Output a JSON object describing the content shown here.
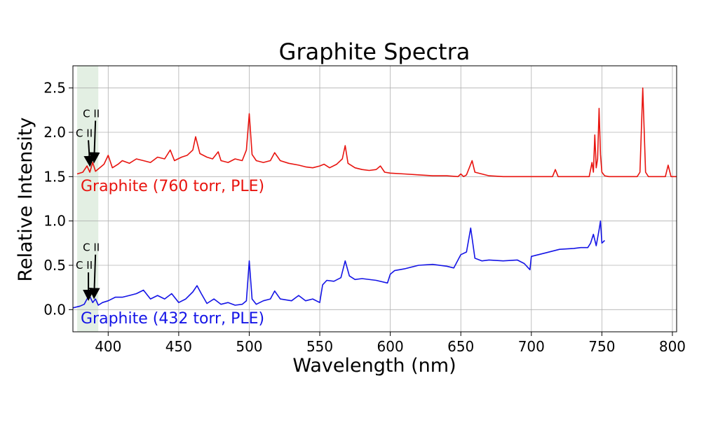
{
  "chart_data": {
    "type": "line",
    "title": "Graphite Spectra",
    "xlabel": "Wavelength (nm)",
    "ylabel": "Relative Intensity",
    "xlim": [
      375,
      803
    ],
    "ylim": [
      -0.25,
      2.75
    ],
    "xticks": [
      400,
      450,
      500,
      550,
      600,
      650,
      700,
      750,
      800
    ],
    "yticks": [
      0.0,
      0.5,
      1.0,
      1.5,
      2.0,
      2.5
    ],
    "ytick_labels": [
      "0.0",
      "0.5",
      "1.0",
      "1.5",
      "2.0",
      "2.5"
    ],
    "grid": true,
    "highlight_band": {
      "x": [
        378,
        393
      ],
      "color": "#d9ead9"
    },
    "series": [
      {
        "name": "Graphite (760 torr, PLE)",
        "color": "#e8140f",
        "x": [
          378,
          382,
          385,
          387,
          389,
          391,
          394,
          397,
          400,
          403,
          407,
          410,
          415,
          420,
          425,
          430,
          435,
          440,
          444,
          447,
          452,
          456,
          460,
          462,
          465,
          470,
          474,
          478,
          480,
          485,
          490,
          495,
          498,
          500,
          502,
          505,
          510,
          515,
          518,
          522,
          528,
          535,
          540,
          545,
          550,
          553,
          557,
          562,
          566,
          568,
          570,
          575,
          580,
          585,
          590,
          593,
          596,
          600,
          610,
          620,
          630,
          640,
          648,
          650,
          652,
          654,
          656,
          658,
          660,
          670,
          680,
          690,
          700,
          710,
          715,
          717,
          719,
          725,
          735,
          741,
          743,
          744,
          745,
          746,
          747,
          748,
          749,
          750,
          752,
          755,
          760,
          770,
          775,
          777,
          779,
          781,
          783,
          790,
          795,
          797,
          799,
          803
        ],
        "y": [
          1.53,
          1.55,
          1.62,
          1.55,
          1.66,
          1.56,
          1.6,
          1.64,
          1.74,
          1.6,
          1.64,
          1.68,
          1.65,
          1.7,
          1.68,
          1.66,
          1.72,
          1.7,
          1.8,
          1.68,
          1.72,
          1.74,
          1.8,
          1.95,
          1.76,
          1.72,
          1.7,
          1.78,
          1.68,
          1.66,
          1.7,
          1.68,
          1.8,
          2.21,
          1.75,
          1.68,
          1.66,
          1.68,
          1.77,
          1.68,
          1.65,
          1.63,
          1.61,
          1.6,
          1.62,
          1.64,
          1.6,
          1.64,
          1.7,
          1.85,
          1.65,
          1.6,
          1.58,
          1.57,
          1.58,
          1.62,
          1.55,
          1.54,
          1.53,
          1.52,
          1.51,
          1.51,
          1.5,
          1.53,
          1.5,
          1.52,
          1.6,
          1.68,
          1.55,
          1.51,
          1.5,
          1.5,
          1.5,
          1.5,
          1.5,
          1.58,
          1.5,
          1.5,
          1.5,
          1.5,
          1.66,
          1.55,
          1.97,
          1.6,
          1.7,
          2.27,
          1.75,
          1.55,
          1.51,
          1.5,
          1.5,
          1.5,
          1.5,
          1.55,
          2.5,
          1.55,
          1.5,
          1.5,
          1.5,
          1.63,
          1.5,
          1.5
        ]
      },
      {
        "name": "Graphite (432 torr, PLE)",
        "color": "#1414e6",
        "x": [
          375,
          380,
          383,
          385,
          387,
          389,
          391,
          393,
          396,
          400,
          405,
          410,
          415,
          420,
          425,
          430,
          435,
          440,
          445,
          450,
          455,
          460,
          463,
          466,
          470,
          475,
          480,
          485,
          490,
          495,
          498,
          500,
          502,
          505,
          510,
          515,
          518,
          522,
          530,
          535,
          540,
          545,
          550,
          552,
          555,
          560,
          565,
          568,
          571,
          575,
          580,
          590,
          598,
          600,
          603,
          610,
          620,
          630,
          640,
          645,
          650,
          654,
          657,
          660,
          665,
          670,
          680,
          690,
          695,
          699,
          700,
          705,
          710,
          720,
          730,
          735,
          740,
          742,
          744,
          746,
          748,
          749,
          750,
          752
        ],
        "y": [
          0.02,
          0.04,
          0.06,
          0.12,
          0.15,
          0.08,
          0.12,
          0.05,
          0.08,
          0.1,
          0.14,
          0.14,
          0.16,
          0.18,
          0.22,
          0.12,
          0.16,
          0.12,
          0.18,
          0.08,
          0.12,
          0.2,
          0.27,
          0.18,
          0.07,
          0.12,
          0.06,
          0.08,
          0.05,
          0.06,
          0.1,
          0.55,
          0.12,
          0.06,
          0.1,
          0.12,
          0.21,
          0.12,
          0.1,
          0.16,
          0.1,
          0.12,
          0.08,
          0.28,
          0.33,
          0.32,
          0.36,
          0.55,
          0.38,
          0.34,
          0.35,
          0.33,
          0.3,
          0.4,
          0.44,
          0.46,
          0.5,
          0.51,
          0.49,
          0.47,
          0.62,
          0.65,
          0.92,
          0.58,
          0.55,
          0.56,
          0.55,
          0.56,
          0.52,
          0.45,
          0.6,
          0.62,
          0.64,
          0.68,
          0.69,
          0.7,
          0.7,
          0.75,
          0.85,
          0.72,
          0.9,
          1.0,
          0.75,
          0.78
        ]
      }
    ],
    "annotations": [
      {
        "text": "C II",
        "x": 383,
        "y": 1.95,
        "arrow_to": [
          387,
          1.64
        ]
      },
      {
        "text": "C II",
        "x": 388,
        "y": 2.17,
        "arrow_to": [
          390,
          1.68
        ]
      },
      {
        "text": "C II",
        "x": 383,
        "y": 0.46,
        "arrow_to": [
          386,
          0.13
        ]
      },
      {
        "text": "C II",
        "x": 388,
        "y": 0.66,
        "arrow_to": [
          390,
          0.15
        ]
      }
    ]
  }
}
